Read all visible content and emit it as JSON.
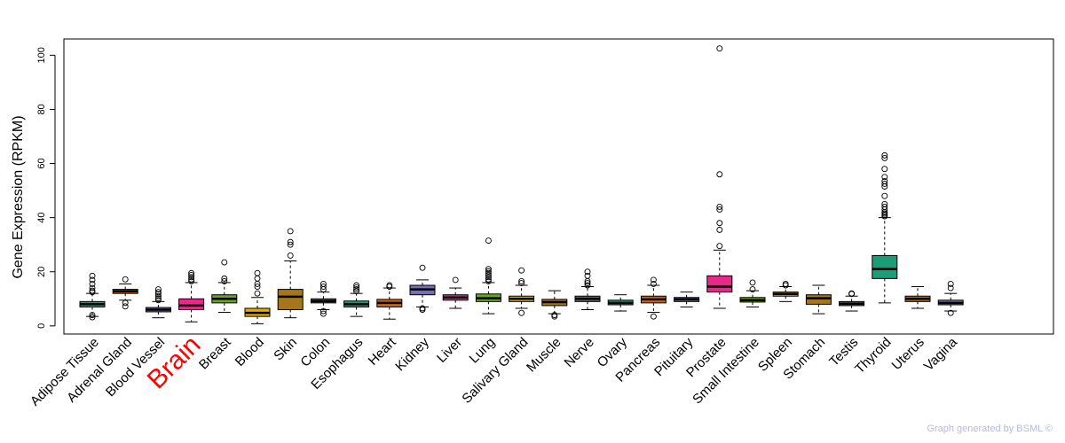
{
  "chart_data": {
    "type": "boxplot",
    "ylabel": "Gene Expression (RPKM)",
    "ylim": [
      -3,
      106
    ],
    "yticks": [
      0,
      20,
      40,
      60,
      80,
      100
    ],
    "highlight_category": "Brain",
    "highlight_color": "#ff0000",
    "categories": [
      {
        "name": "Adipose Tissue",
        "color": "#1b9e77",
        "whisker_low": 3.5,
        "q1": 7,
        "median": 8,
        "q3": 9,
        "whisker_high": 12,
        "outliers": [
          3.2,
          4,
          12.5,
          13,
          14,
          15.5,
          17,
          18.5
        ]
      },
      {
        "name": "Adrenal Gland",
        "color": "#d95f02",
        "whisker_low": 9.5,
        "q1": 12,
        "median": 12.8,
        "q3": 13.5,
        "whisker_high": 15.5,
        "outliers": [
          7.2,
          8.5,
          17.2
        ]
      },
      {
        "name": "Blood Vessel",
        "color": "#7570b3",
        "whisker_low": 3,
        "q1": 5.2,
        "median": 6,
        "q3": 6.8,
        "whisker_high": 9,
        "outliers": [
          9.5,
          10.2,
          11,
          11.8,
          12.5,
          13.5
        ]
      },
      {
        "name": "Brain",
        "color": "#e7298a",
        "whisker_low": 1.5,
        "q1": 6,
        "median": 7.5,
        "q3": 10,
        "whisker_high": 16,
        "outliers": [
          16.5,
          17.2,
          18,
          18.8,
          19.5
        ]
      },
      {
        "name": "Breast",
        "color": "#66a61e",
        "whisker_low": 5,
        "q1": 8.5,
        "median": 10,
        "q3": 11.5,
        "whisker_high": 16,
        "outliers": [
          16.5,
          17.5,
          23.5
        ]
      },
      {
        "name": "Blood",
        "color": "#e6ab02",
        "whisker_low": 0.8,
        "q1": 3.5,
        "median": 4.8,
        "q3": 6.5,
        "whisker_high": 10.5,
        "outliers": [
          12,
          14.5,
          15.5,
          17.5,
          19.5
        ]
      },
      {
        "name": "Skin",
        "color": "#a6761d",
        "whisker_low": 3,
        "q1": 6,
        "median": 10.8,
        "q3": 13.5,
        "whisker_high": 24,
        "outliers": [
          26,
          30,
          31,
          35
        ]
      },
      {
        "name": "Colon",
        "color": "#666666",
        "whisker_low": 6,
        "q1": 8.5,
        "median": 9.2,
        "q3": 10,
        "whisker_high": 12.5,
        "outliers": [
          4.5,
          5.5,
          13.5,
          14.5,
          15.5
        ]
      },
      {
        "name": "Esophagus",
        "color": "#1b9e77",
        "whisker_low": 3.5,
        "q1": 7,
        "median": 8,
        "q3": 9.2,
        "whisker_high": 12,
        "outliers": [
          12.8,
          13.5,
          14.2,
          15
        ]
      },
      {
        "name": "Heart",
        "color": "#d95f02",
        "whisker_low": 2.5,
        "q1": 7,
        "median": 8.5,
        "q3": 9.8,
        "whisker_high": 14,
        "outliers": [
          14.5,
          15
        ]
      },
      {
        "name": "Kidney",
        "color": "#7570b3",
        "whisker_low": 7,
        "q1": 11.5,
        "median": 13.5,
        "q3": 15,
        "whisker_high": 17,
        "outliers": [
          6,
          6.5,
          21.5
        ]
      },
      {
        "name": "Liver",
        "color": "#e7298a",
        "whisker_low": 6.5,
        "q1": 9.5,
        "median": 10.5,
        "q3": 11.5,
        "whisker_high": 14,
        "outliers": [
          17
        ]
      },
      {
        "name": "Lung",
        "color": "#66a61e",
        "whisker_low": 4.5,
        "q1": 9,
        "median": 10.2,
        "q3": 11.8,
        "whisker_high": 16,
        "outliers": [
          16.5,
          17.2,
          18,
          18.8,
          19.5,
          20.2,
          21,
          31.5
        ]
      },
      {
        "name": "Salivary Gland",
        "color": "#e6ab02",
        "whisker_low": 6.5,
        "q1": 9,
        "median": 10,
        "q3": 11,
        "whisker_high": 15,
        "outliers": [
          4.8,
          15.8,
          16.5,
          20.5
        ]
      },
      {
        "name": "Muscle",
        "color": "#a6761d",
        "whisker_low": 4.5,
        "q1": 7.5,
        "median": 8.8,
        "q3": 9.8,
        "whisker_high": 13,
        "outliers": [
          3.5,
          4
        ]
      },
      {
        "name": "Nerve",
        "color": "#666666",
        "whisker_low": 6,
        "q1": 9,
        "median": 10,
        "q3": 11,
        "whisker_high": 14.5,
        "outliers": [
          15,
          15.8,
          16.5,
          18.5,
          20
        ]
      },
      {
        "name": "Ovary",
        "color": "#1b9e77",
        "whisker_low": 5.5,
        "q1": 7.8,
        "median": 8.5,
        "q3": 9.5,
        "whisker_high": 11.5,
        "outliers": []
      },
      {
        "name": "Pancreas",
        "color": "#d95f02",
        "whisker_low": 5,
        "q1": 8.5,
        "median": 9.8,
        "q3": 11,
        "whisker_high": 15,
        "outliers": [
          3.5,
          15.5,
          17
        ]
      },
      {
        "name": "Pituitary",
        "color": "#7570b3",
        "whisker_low": 7,
        "q1": 9,
        "median": 9.8,
        "q3": 10.5,
        "whisker_high": 12.5,
        "outliers": []
      },
      {
        "name": "Prostate",
        "color": "#e7298a",
        "whisker_low": 6.5,
        "q1": 12.5,
        "median": 14.5,
        "q3": 18.5,
        "whisker_high": 28,
        "outliers": [
          29.5,
          35.5,
          38,
          43,
          44,
          56,
          102.5
        ]
      },
      {
        "name": "Small Intestine",
        "color": "#66a61e",
        "whisker_low": 7,
        "q1": 8.8,
        "median": 9.5,
        "q3": 10.5,
        "whisker_high": 13,
        "outliers": [
          13.5,
          16
        ]
      },
      {
        "name": "Spleen",
        "color": "#e6ab02",
        "whisker_low": 9,
        "q1": 11,
        "median": 11.8,
        "q3": 12.5,
        "whisker_high": 14.5,
        "outliers": [
          15,
          15.5
        ]
      },
      {
        "name": "Stomach",
        "color": "#a6761d",
        "whisker_low": 4.5,
        "q1": 8,
        "median": 10.2,
        "q3": 11.5,
        "whisker_high": 15,
        "outliers": []
      },
      {
        "name": "Testis",
        "color": "#666666",
        "whisker_low": 5.5,
        "q1": 7.5,
        "median": 8.2,
        "q3": 9,
        "whisker_high": 11,
        "outliers": [
          11.8,
          12
        ]
      },
      {
        "name": "Thyroid",
        "color": "#1b9e77",
        "whisker_low": 8.5,
        "q1": 17.5,
        "median": 21,
        "q3": 26,
        "whisker_high": 40,
        "outliers": [
          40.5,
          41,
          41.5,
          42,
          43,
          44,
          45,
          48,
          51.5,
          52.5,
          53.5,
          55,
          58,
          62,
          63
        ]
      },
      {
        "name": "Uterus",
        "color": "#d95f02",
        "whisker_low": 6.5,
        "q1": 9,
        "median": 10,
        "q3": 11,
        "whisker_high": 14.5,
        "outliers": []
      },
      {
        "name": "Vagina",
        "color": "#7570b3",
        "whisker_low": 5.5,
        "q1": 7.8,
        "median": 8.5,
        "q3": 9.5,
        "whisker_high": 12,
        "outliers": [
          4.8,
          14,
          15.5
        ]
      }
    ]
  },
  "footer": {
    "credit": "Graph generated by BSML ©"
  }
}
